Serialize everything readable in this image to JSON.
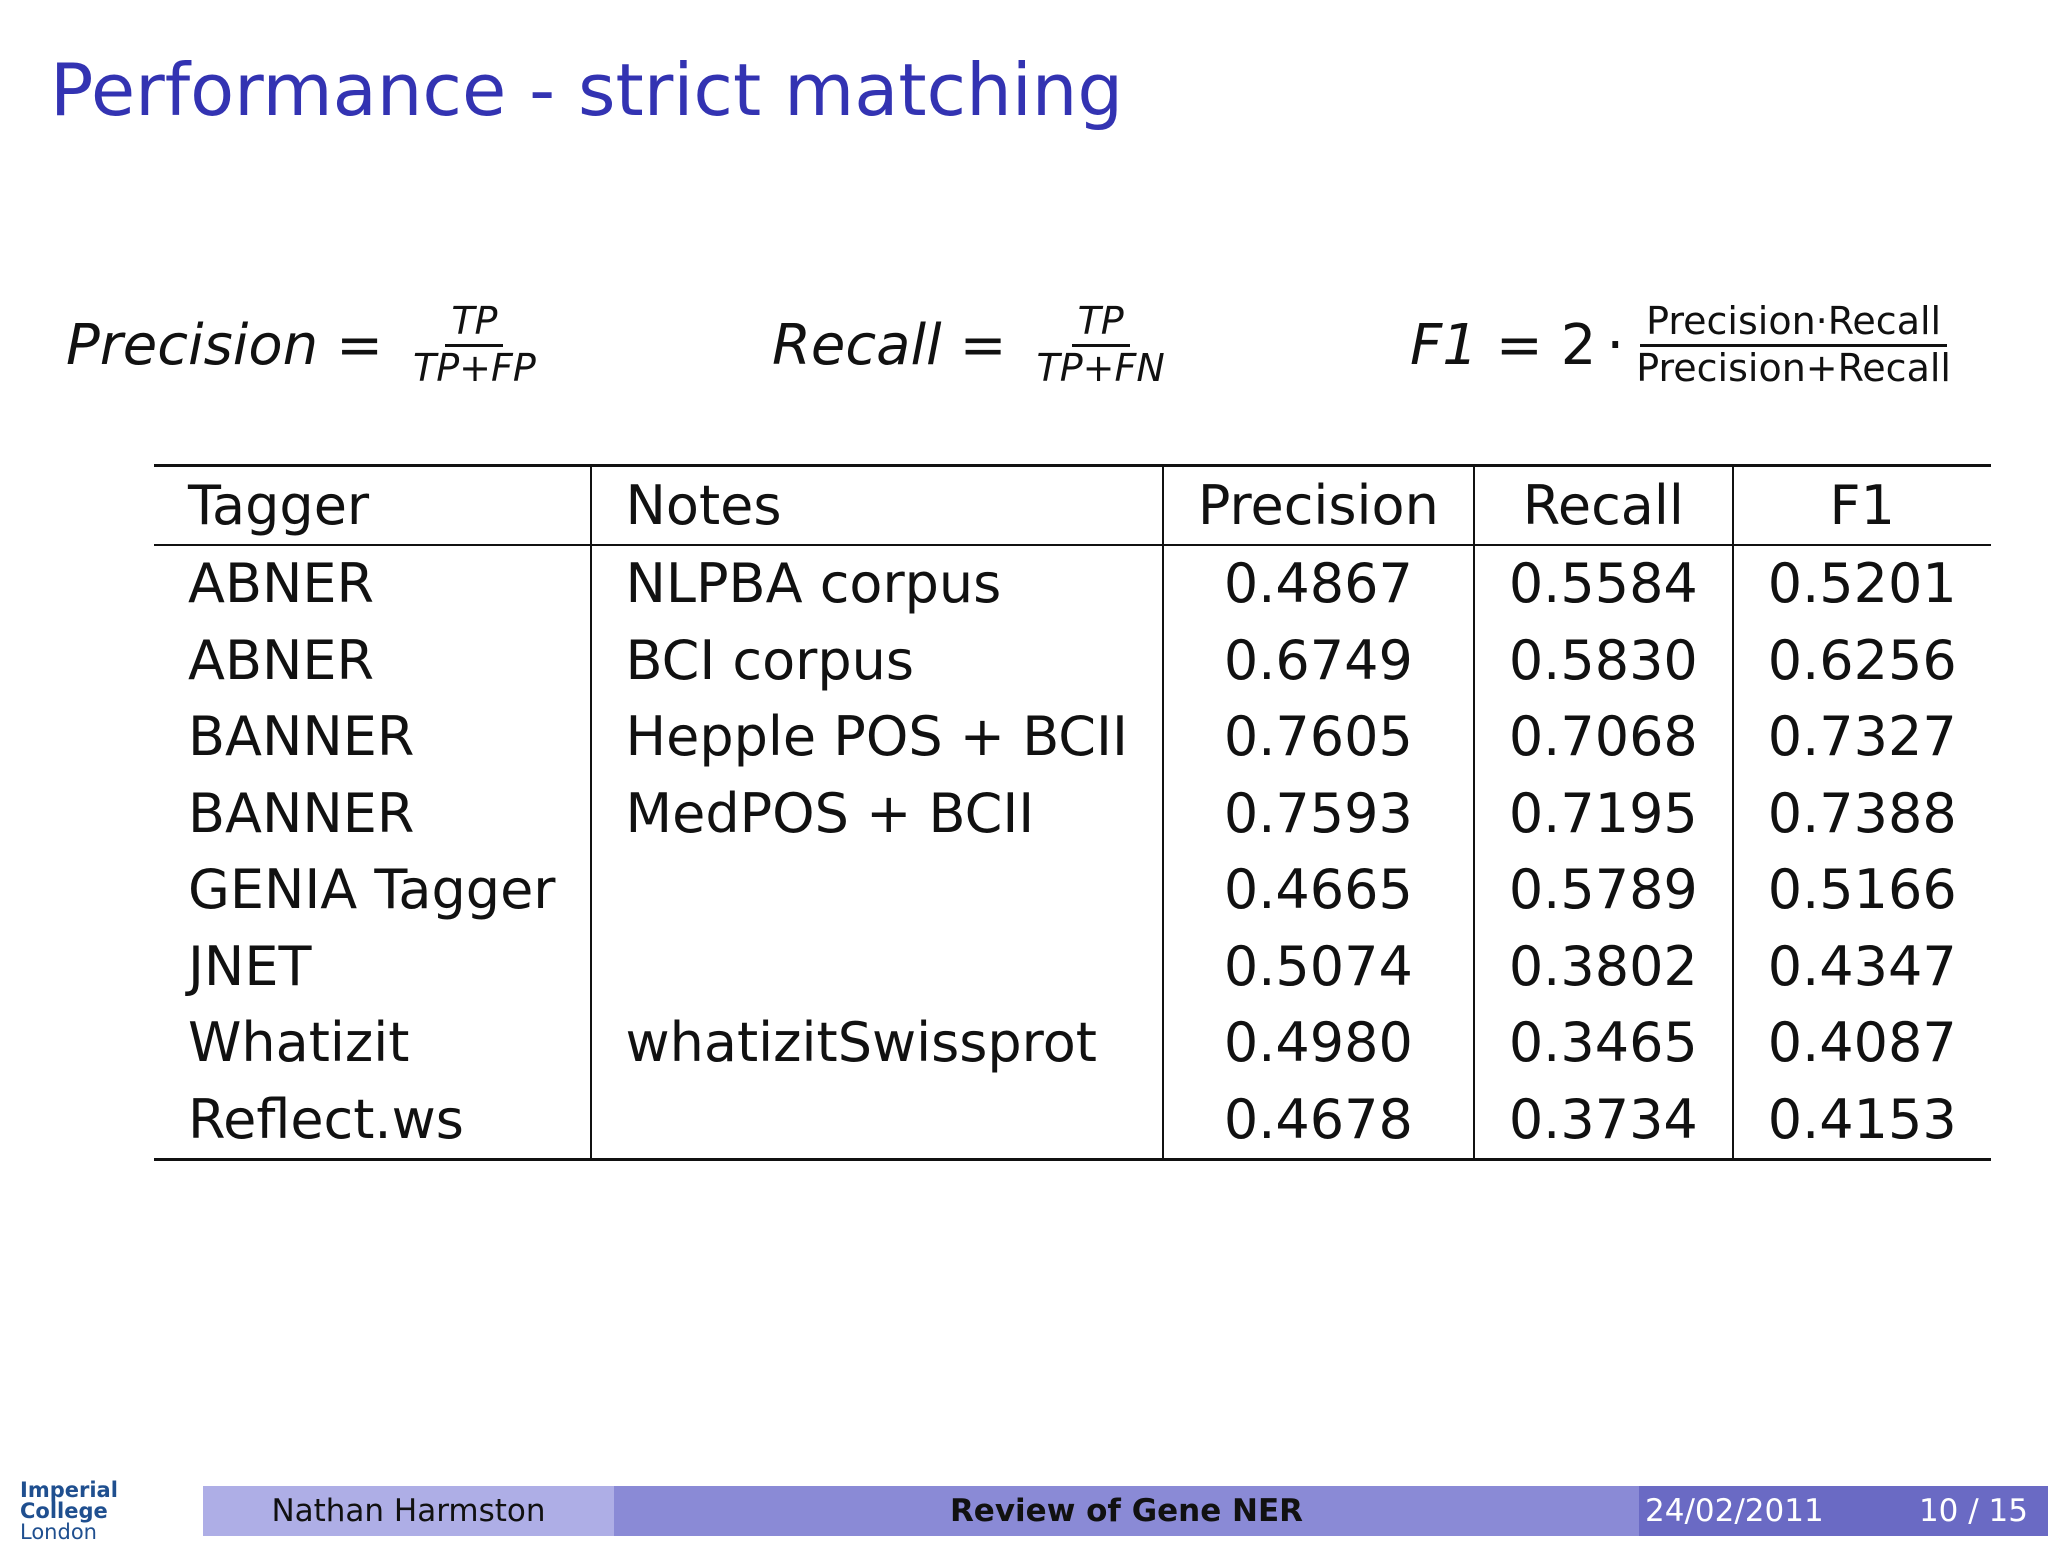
{
  "header": {
    "title": "Performance - strict matching"
  },
  "formulas": [
    {
      "lhs": "Precision",
      "eq": "=",
      "num": "TP",
      "den": "TP+FP"
    },
    {
      "lhs": "Recall",
      "eq": "=",
      "num": "TP",
      "den": "TP+FN"
    },
    {
      "lhs": "F1",
      "eq": "=",
      "factor": "2",
      "dot": "·",
      "num": "Precision·Recall",
      "den": "Precision+Recall"
    }
  ],
  "table": {
    "headers": [
      "Tagger",
      "Notes",
      "Precision",
      "Recall",
      "F1"
    ],
    "rows": [
      [
        "ABNER",
        "NLPBA corpus",
        "0.4867",
        "0.5584",
        "0.5201"
      ],
      [
        "ABNER",
        "BCI corpus",
        "0.6749",
        "0.5830",
        "0.6256"
      ],
      [
        "BANNER",
        "Hepple POS + BCII",
        "0.7605",
        "0.7068",
        "0.7327"
      ],
      [
        "BANNER",
        "MedPOS + BCII",
        "0.7593",
        "0.7195",
        "0.7388"
      ],
      [
        "GENIA Tagger",
        null,
        "0.4665",
        "0.5789",
        "0.5166"
      ],
      [
        "JNET",
        null,
        "0.5074",
        "0.3802",
        "0.4347"
      ],
      [
        "Whatizit",
        "whatizitSwissprot",
        "0.4980",
        "0.3465",
        "0.4087"
      ],
      [
        "Reflect.ws",
        null,
        "0.4678",
        "0.3734",
        "0.4153"
      ]
    ]
  },
  "footer": {
    "logo": [
      "Imperial College",
      "London"
    ],
    "author": "Nathan Harmston",
    "talk": "Review of Gene NER",
    "date": "24/02/2011",
    "page": "10 / 15"
  }
}
